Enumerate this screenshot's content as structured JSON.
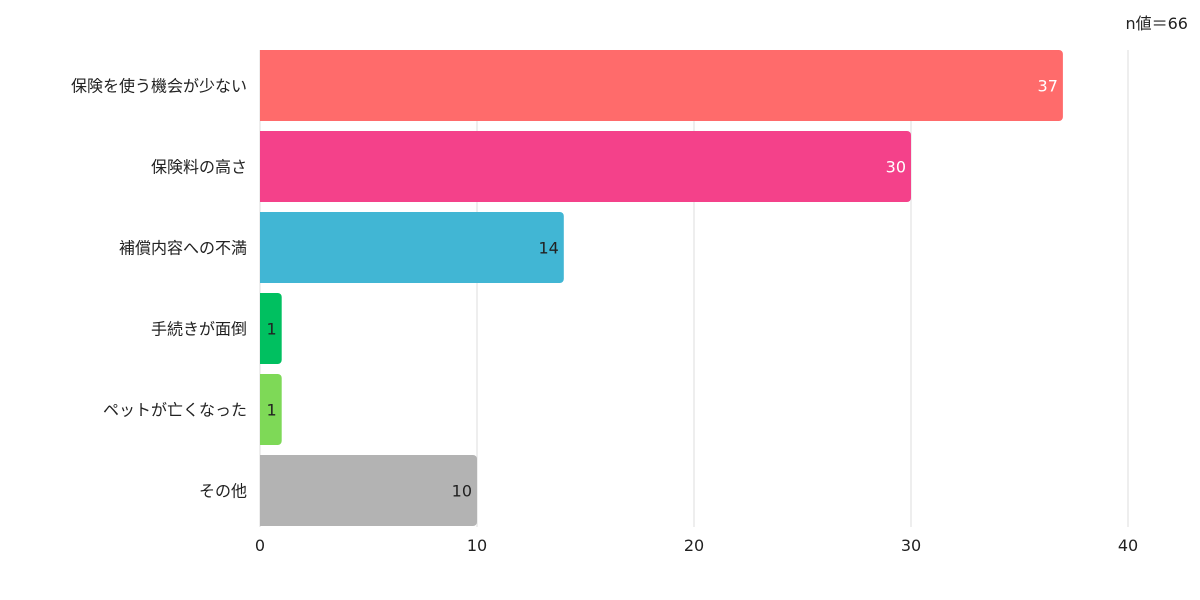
{
  "chart_data": {
    "type": "bar",
    "orientation": "horizontal",
    "n_label": "n値＝66",
    "categories": [
      "保険を使う機会が少ない",
      "保険料の高さ",
      "補償内容への不満",
      "手続きが面倒",
      "ペットが亡くなった",
      "その他"
    ],
    "values": [
      37,
      30,
      14,
      1,
      1,
      10
    ],
    "bar_colors": [
      "#ff6b6b",
      "#f4418a",
      "#41b6d4",
      "#00c060",
      "#7ed957",
      "#b3b3b3"
    ],
    "label_colors": [
      "#ffffff",
      "#ffffff",
      "#222222",
      "#222222",
      "#222222",
      "#222222"
    ],
    "xlim": [
      0,
      40
    ],
    "xticks": [
      0,
      10,
      20,
      30,
      40
    ],
    "grid": true,
    "legend": "none"
  }
}
